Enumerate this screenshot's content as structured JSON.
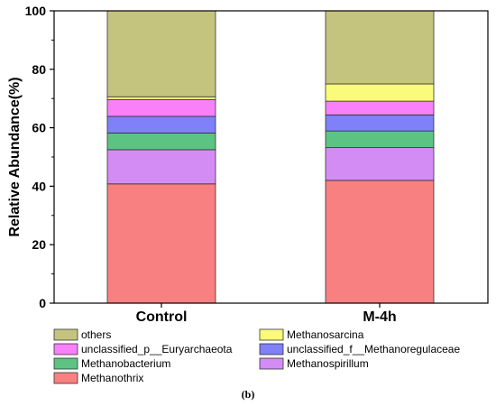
{
  "chart_data": {
    "type": "bar",
    "stacked": true,
    "categories": [
      "Control",
      "M-4h"
    ],
    "ylabel": "Relative Abundance(%)",
    "xlabel": "",
    "ylim": [
      0,
      100
    ],
    "yticks": [
      0,
      20,
      40,
      60,
      80,
      100
    ],
    "grid": false,
    "legend_position": "bottom",
    "caption": "(b)",
    "series": [
      {
        "name": "Methanothrix",
        "color": "#F88080",
        "values": [
          40.8,
          42.0
        ]
      },
      {
        "name": "Methanospirillum",
        "color": "#D48CF5",
        "values": [
          11.7,
          11.2
        ]
      },
      {
        "name": "Methanobacterium",
        "color": "#5CC482",
        "values": [
          5.7,
          5.7
        ]
      },
      {
        "name": "unclassified_f__Methanoregulaceae",
        "color": "#8080F8",
        "values": [
          5.7,
          5.5
        ]
      },
      {
        "name": "unclassified_p__Euryarchaeota",
        "color": "#F880F8",
        "values": [
          5.7,
          4.7
        ]
      },
      {
        "name": "Methanosarcina",
        "color": "#FBFB7B",
        "values": [
          1.0,
          5.9
        ]
      },
      {
        "name": "others",
        "color": "#C4C47F",
        "values": [
          29.4,
          25.0
        ]
      }
    ],
    "legend_order": [
      "others",
      "Methanosarcina",
      "unclassified_p__Euryarchaeota",
      "unclassified_f__Methanoregulaceae",
      "Methanobacterium",
      "Methanospirillum",
      "Methanothrix"
    ]
  }
}
